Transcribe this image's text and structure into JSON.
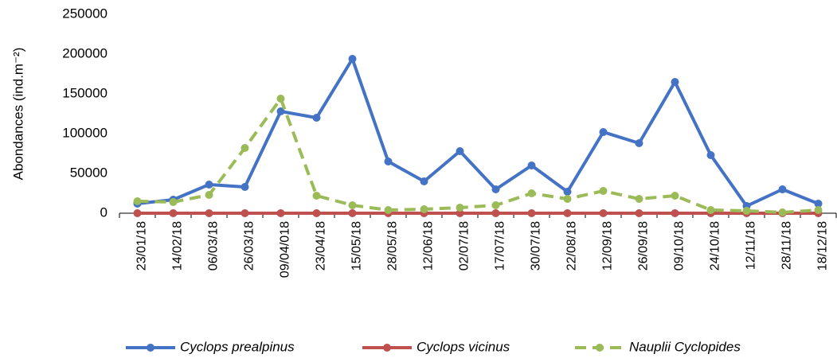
{
  "chart_data": {
    "type": "line",
    "y_label": "Abondances (ind.m⁻²)",
    "categories": [
      "23/01/18",
      "14/02/18",
      "06/03/18",
      "26/03/18",
      "09/04/018",
      "23/04/18",
      "15/05/18",
      "28/05/18",
      "12/06/18",
      "02/07/18",
      "17/07/18",
      "30/07/18",
      "22/08/18",
      "12/09/18",
      "26/09/18",
      "09/10/18",
      "24/10/18",
      "12/11/18",
      "28/11/18",
      "18/12/18"
    ],
    "series": [
      {
        "name": "Cyclops prealpinus",
        "color": "#4472c4",
        "dashed": false,
        "values": [
          12000,
          17000,
          36000,
          33000,
          128000,
          120000,
          194000,
          65000,
          40000,
          78000,
          30000,
          60000,
          27000,
          102000,
          88000,
          165000,
          73000,
          9000,
          30000,
          12000
        ]
      },
      {
        "name": "Cyclops vicinus",
        "color": "#c0504d",
        "dashed": false,
        "values": [
          0,
          0,
          0,
          0,
          0,
          0,
          0,
          0,
          0,
          0,
          0,
          0,
          0,
          0,
          0,
          0,
          0,
          0,
          0,
          0
        ]
      },
      {
        "name": "Nauplii Cyclopides",
        "color": "#9bbb59",
        "dashed": true,
        "values": [
          15000,
          14000,
          23000,
          82000,
          144000,
          22000,
          10000,
          4000,
          5000,
          7000,
          10000,
          25000,
          18000,
          28000,
          18000,
          22000,
          4000,
          3000,
          1000,
          4000
        ]
      }
    ],
    "ylim": [
      0,
      250000
    ],
    "yticks": [
      0,
      50000,
      100000,
      150000,
      200000,
      250000
    ],
    "grid": false,
    "legend": "bottom"
  }
}
